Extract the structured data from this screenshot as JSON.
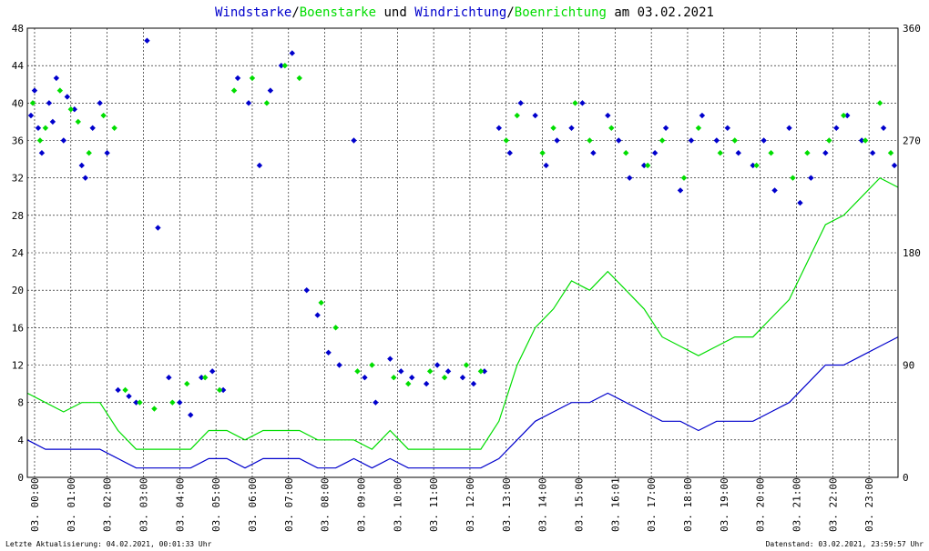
{
  "title": {
    "part1": "Windstarke",
    "sep1": "/",
    "part2": "Boenstarke",
    "mid": " und ",
    "part3": "Windrichtung",
    "sep2": "/",
    "part4": "Boenrichtung",
    "date": " am 03.02.2021"
  },
  "footer": {
    "left": "Letzte Aktualisierung: 04.02.2021, 00:01:33 Uhr",
    "right": "Datenstand: 03.02.2021, 23:59:57 Uhr"
  },
  "colors": {
    "wind": "#0000cc",
    "gust": "#00dd00",
    "grid": "#000000",
    "text": "#000000"
  },
  "chart_data": {
    "type": "line",
    "title": "Windstarke/Boenstarke und Windrichtung/Boenrichtung am 03.02.2021",
    "y_left": {
      "range": [
        0,
        48
      ],
      "ticks": [
        "0",
        "4",
        "8",
        "12",
        "16",
        "20",
        "24",
        "28",
        "32",
        "36",
        "40",
        "44",
        "48"
      ]
    },
    "y_right": {
      "range": [
        0,
        360
      ],
      "ticks": [
        "0",
        "90",
        "180",
        "270",
        "360"
      ]
    },
    "x_ticks": [
      "03. 00:00",
      "03. 01:00",
      "03. 02:00",
      "03. 03:00",
      "03. 04:00",
      "03. 05:00",
      "03. 06:00",
      "03. 07:00",
      "03. 08:00",
      "03. 09:00",
      "03. 10:00",
      "03. 11:00",
      "03. 12:00",
      "03. 13:00",
      "03. 14:00",
      "03. 15:00",
      "03. 16:01",
      "03. 17:00",
      "03. 18:00",
      "03. 19:00",
      "03. 20:00",
      "03. 21:00",
      "03. 22:00",
      "03. 23:00"
    ],
    "x_range_hours": [
      0,
      24
    ],
    "grid": true,
    "series": [
      {
        "kind": "speed_line",
        "color": "#0000cc",
        "hours": [
          0,
          0.5,
          1,
          1.5,
          2,
          2.5,
          3,
          3.5,
          4,
          4.5,
          5,
          5.5,
          6,
          6.5,
          7,
          7.5,
          8,
          8.5,
          9,
          9.5,
          10,
          10.5,
          11,
          11.5,
          12,
          12.5,
          13,
          13.5,
          14,
          14.5,
          15,
          15.5,
          16,
          16.5,
          17,
          17.5,
          18,
          18.5,
          19,
          19.5,
          20,
          20.5,
          21,
          21.5,
          22,
          22.5,
          23,
          23.5,
          24
        ],
        "values": [
          4,
          3,
          3,
          3,
          3,
          2,
          1,
          1,
          1,
          1,
          2,
          2,
          1,
          2,
          2,
          2,
          1,
          1,
          2,
          1,
          2,
          1,
          1,
          1,
          1,
          1,
          2,
          4,
          6,
          7,
          8,
          8,
          9,
          8,
          7,
          6,
          6,
          5,
          6,
          6,
          6,
          7,
          8,
          10,
          12,
          12,
          13,
          14,
          15
        ]
      },
      {
        "kind": "gust_line",
        "color": "#00dd00",
        "hours": [
          0,
          0.5,
          1,
          1.5,
          2,
          2.5,
          3,
          3.5,
          4,
          4.5,
          5,
          5.5,
          6,
          6.5,
          7,
          7.5,
          8,
          8.5,
          9,
          9.5,
          10,
          10.5,
          11,
          11.5,
          12,
          12.5,
          13,
          13.5,
          14,
          14.5,
          15,
          15.5,
          16,
          16.5,
          17,
          17.5,
          18,
          18.5,
          19,
          19.5,
          20,
          20.5,
          21,
          21.5,
          22,
          22.5,
          23,
          23.5,
          24
        ],
        "values": [
          9,
          8,
          7,
          8,
          8,
          5,
          3,
          3,
          3,
          3,
          5,
          5,
          4,
          5,
          5,
          5,
          4,
          4,
          4,
          3,
          5,
          3,
          3,
          3,
          3,
          3,
          6,
          12,
          16,
          18,
          21,
          20,
          22,
          20,
          18,
          15,
          14,
          13,
          14,
          15,
          15,
          17,
          19,
          23,
          27,
          28,
          30,
          32,
          31
        ]
      },
      {
        "kind": "direction_points",
        "color": "#0000cc",
        "hours": [
          0.1,
          0.2,
          0.3,
          0.4,
          0.6,
          0.7,
          0.8,
          1.0,
          1.1,
          1.3,
          1.5,
          1.6,
          1.8,
          2.0,
          2.2,
          2.5,
          2.8,
          3.0,
          3.3,
          3.6,
          3.9,
          4.2,
          4.5,
          4.8,
          5.1,
          5.4,
          5.8,
          6.1,
          6.4,
          6.7,
          7.0,
          7.3,
          7.7,
          8.0,
          8.3,
          8.6,
          9.0,
          9.3,
          9.6,
          10.0,
          10.3,
          10.6,
          11.0,
          11.3,
          11.6,
          12.0,
          12.3,
          12.6,
          13.0,
          13.3,
          13.6,
          14.0,
          14.3,
          14.6,
          15.0,
          15.3,
          15.6,
          16.0,
          16.3,
          16.6,
          17.0,
          17.3,
          17.6,
          18.0,
          18.3,
          18.6,
          19.0,
          19.3,
          19.6,
          20.0,
          20.3,
          20.6,
          21.0,
          21.3,
          21.6,
          22.0,
          22.3,
          22.6,
          23.0,
          23.3,
          23.6,
          23.9
        ],
        "values": [
          290,
          310,
          280,
          260,
          300,
          285,
          320,
          270,
          305,
          295,
          250,
          240,
          280,
          300,
          260,
          70,
          65,
          60,
          350,
          200,
          80,
          60,
          50,
          80,
          85,
          70,
          320,
          300,
          250,
          310,
          330,
          340,
          150,
          130,
          100,
          90,
          270,
          80,
          60,
          95,
          85,
          80,
          75,
          90,
          85,
          80,
          75,
          85,
          280,
          260,
          300,
          290,
          250,
          270,
          280,
          300,
          260,
          290,
          270,
          240,
          250,
          260,
          280,
          230,
          270,
          290,
          270,
          280,
          260,
          250,
          270,
          230,
          280,
          220,
          240,
          260,
          280,
          290,
          270,
          260,
          280,
          250
        ]
      },
      {
        "kind": "gust_direction_points",
        "color": "#00dd00",
        "hours": [
          0.15,
          0.35,
          0.5,
          0.9,
          1.2,
          1.4,
          1.7,
          2.1,
          2.4,
          2.7,
          3.1,
          3.5,
          4.0,
          4.4,
          4.9,
          5.3,
          5.7,
          6.2,
          6.6,
          7.1,
          7.5,
          8.1,
          8.5,
          9.1,
          9.5,
          10.1,
          10.5,
          11.1,
          11.5,
          12.1,
          12.5,
          13.2,
          13.5,
          14.2,
          14.5,
          15.1,
          15.5,
          16.1,
          16.5,
          17.1,
          17.5,
          18.1,
          18.5,
          19.1,
          19.5,
          20.1,
          20.5,
          21.1,
          21.5,
          22.1,
          22.5,
          23.1,
          23.5,
          23.8
        ],
        "values": [
          300,
          270,
          280,
          310,
          295,
          285,
          260,
          290,
          280,
          70,
          60,
          55,
          60,
          75,
          80,
          70,
          310,
          320,
          300,
          330,
          320,
          140,
          120,
          85,
          90,
          80,
          75,
          85,
          80,
          90,
          85,
          270,
          290,
          260,
          280,
          300,
          270,
          280,
          260,
          250,
          270,
          240,
          280,
          260,
          270,
          250,
          260,
          240,
          260,
          270,
          290,
          270,
          300,
          260
        ]
      }
    ]
  }
}
